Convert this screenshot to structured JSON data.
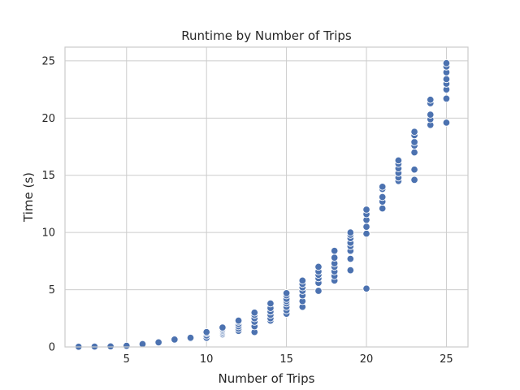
{
  "chart_data": {
    "type": "scatter",
    "title": "Runtime by Number of Trips",
    "xlabel": "Number of Trips",
    "ylabel": "Time (s)",
    "xlim": [
      1.15,
      26.35
    ],
    "ylim": [
      0,
      26.2
    ],
    "xticks": [
      5,
      10,
      15,
      20,
      25
    ],
    "yticks": [
      0,
      5,
      10,
      15,
      20,
      25
    ],
    "grid": true,
    "color": "#4c72b0",
    "series": [
      {
        "points": [
          [
            2,
            0.02
          ],
          [
            3,
            0.03
          ],
          [
            4,
            0.05
          ],
          [
            5,
            0.08
          ],
          [
            5,
            0.1
          ],
          [
            6,
            0.15
          ],
          [
            6,
            0.2
          ],
          [
            6,
            0.25
          ],
          [
            7,
            0.3
          ],
          [
            7,
            0.35
          ],
          [
            7,
            0.4
          ],
          [
            8,
            0.5
          ],
          [
            8,
            0.55
          ],
          [
            8,
            0.6
          ],
          [
            8,
            0.65
          ],
          [
            9,
            0.7
          ],
          [
            9,
            0.75
          ],
          [
            9,
            0.8
          ],
          [
            10,
            0.8
          ],
          [
            10,
            1.0
          ],
          [
            10,
            1.2
          ],
          [
            10,
            1.3
          ],
          [
            11,
            1.1
          ],
          [
            11,
            1.2
          ],
          [
            11,
            1.3
          ],
          [
            11,
            1.4
          ],
          [
            11,
            1.5
          ],
          [
            11,
            1.6
          ],
          [
            11,
            1.7
          ],
          [
            12,
            1.4
          ],
          [
            12,
            1.6
          ],
          [
            12,
            1.8
          ],
          [
            12,
            2.0
          ],
          [
            12,
            2.2
          ],
          [
            12,
            2.3
          ],
          [
            13,
            1.3
          ],
          [
            13,
            1.8
          ],
          [
            13,
            2.2
          ],
          [
            13,
            2.5
          ],
          [
            13,
            2.8
          ],
          [
            13,
            3.0
          ],
          [
            14,
            2.3
          ],
          [
            14,
            2.5
          ],
          [
            14,
            2.8
          ],
          [
            14,
            3.1
          ],
          [
            14,
            3.4
          ],
          [
            14,
            3.8
          ],
          [
            15,
            2.9
          ],
          [
            15,
            3.2
          ],
          [
            15,
            3.5
          ],
          [
            15,
            3.8
          ],
          [
            15,
            4.0
          ],
          [
            15,
            4.2
          ],
          [
            15,
            4.5
          ],
          [
            15,
            4.7
          ],
          [
            16,
            3.5
          ],
          [
            16,
            4.0
          ],
          [
            16,
            4.5
          ],
          [
            16,
            4.9
          ],
          [
            16,
            5.2
          ],
          [
            16,
            5.5
          ],
          [
            16,
            5.8
          ],
          [
            17,
            4.9
          ],
          [
            17,
            5.6
          ],
          [
            17,
            6.0
          ],
          [
            17,
            6.3
          ],
          [
            17,
            6.6
          ],
          [
            17,
            7.0
          ],
          [
            18,
            5.8
          ],
          [
            18,
            6.2
          ],
          [
            18,
            6.6
          ],
          [
            18,
            7.0
          ],
          [
            18,
            7.3
          ],
          [
            18,
            7.8
          ],
          [
            18,
            8.4
          ],
          [
            19,
            6.7
          ],
          [
            19,
            7.7
          ],
          [
            19,
            8.4
          ],
          [
            19,
            8.8
          ],
          [
            19,
            9.1
          ],
          [
            19,
            9.5
          ],
          [
            19,
            9.8
          ],
          [
            19,
            10.0
          ],
          [
            20,
            5.1
          ],
          [
            20,
            9.9
          ],
          [
            20,
            10.5
          ],
          [
            20,
            11.1
          ],
          [
            20,
            11.6
          ],
          [
            20,
            12.0
          ],
          [
            21,
            12.1
          ],
          [
            21,
            12.7
          ],
          [
            21,
            13.1
          ],
          [
            21,
            13.8
          ],
          [
            21,
            14.0
          ],
          [
            22,
            14.5
          ],
          [
            22,
            14.8
          ],
          [
            22,
            15.2
          ],
          [
            22,
            15.6
          ],
          [
            22,
            16.0
          ],
          [
            22,
            16.3
          ],
          [
            23,
            14.6
          ],
          [
            23,
            15.5
          ],
          [
            23,
            17.0
          ],
          [
            23,
            17.6
          ],
          [
            23,
            17.9
          ],
          [
            23,
            18.5
          ],
          [
            23,
            18.8
          ],
          [
            24,
            19.4
          ],
          [
            24,
            19.9
          ],
          [
            24,
            20.3
          ],
          [
            24,
            21.3
          ],
          [
            24,
            21.6
          ],
          [
            25,
            19.6
          ],
          [
            25,
            21.7
          ],
          [
            25,
            22.5
          ],
          [
            25,
            23.0
          ],
          [
            25,
            23.4
          ],
          [
            25,
            24.0
          ],
          [
            25,
            24.5
          ],
          [
            25,
            24.8
          ]
        ]
      }
    ]
  }
}
